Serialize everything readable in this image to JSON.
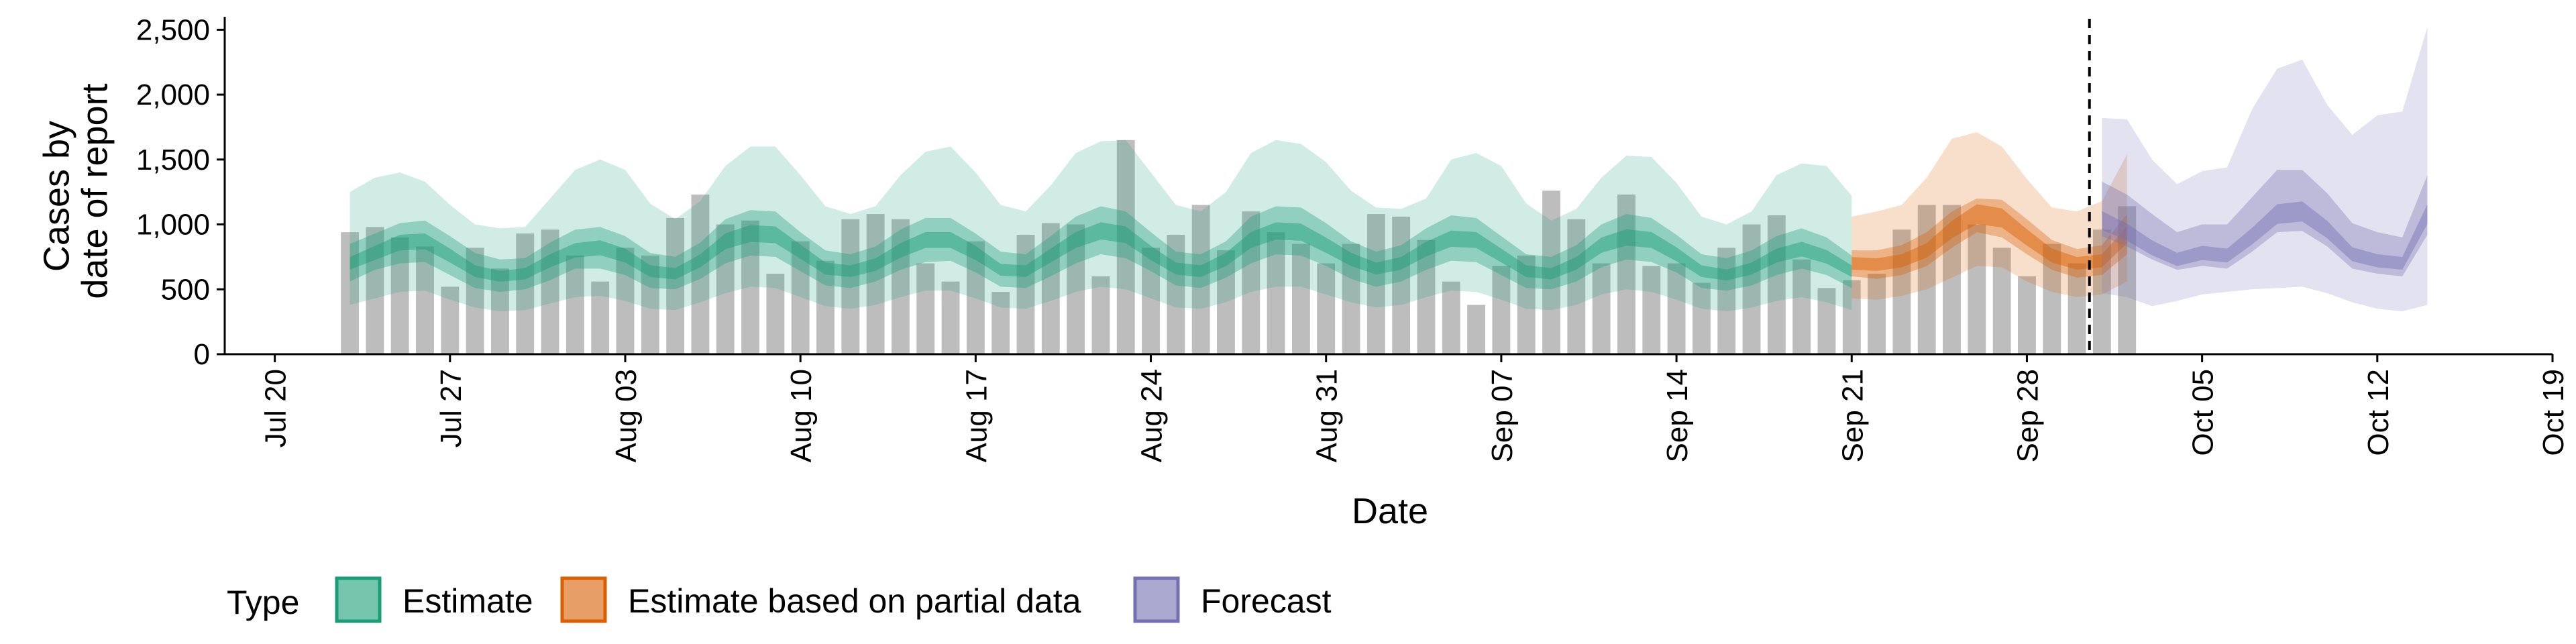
{
  "chart_data": {
    "type": "bar",
    "xlabel": "Date",
    "ylabel": [
      "Cases by",
      "date of report"
    ],
    "ylim": [
      0,
      2600
    ],
    "y_ticks": [
      0,
      500,
      1000,
      1500,
      2000,
      2500
    ],
    "y_tick_labels": [
      "0",
      "500",
      "1,000",
      "1,500",
      "2,000",
      "2,500"
    ],
    "x_range": [
      "2020-07-18",
      "2020-10-19"
    ],
    "x_ticks": [
      "2020-07-20",
      "2020-07-27",
      "2020-08-03",
      "2020-08-10",
      "2020-08-17",
      "2020-08-24",
      "2020-08-31",
      "2020-09-07",
      "2020-09-14",
      "2020-09-21",
      "2020-09-28",
      "2020-10-05",
      "2020-10-12",
      "2020-10-19"
    ],
    "x_tick_labels": [
      "Jul 20",
      "Jul 27",
      "Aug 03",
      "Aug 10",
      "Aug 17",
      "Aug 24",
      "Aug 31",
      "Sep 07",
      "Sep 14",
      "Sep 21",
      "Sep 28",
      "Oct 05",
      "Oct 12",
      "Oct 19"
    ],
    "grid": false,
    "vline_date": "2020-09-30",
    "legend": {
      "title": "Type",
      "position": "bottom",
      "entries": [
        {
          "label": "Estimate",
          "color": "#1b9e77"
        },
        {
          "label": "Estimate based on partial data",
          "color": "#d95f02"
        },
        {
          "label": "Forecast",
          "color": "#7570b3"
        }
      ]
    },
    "reported_cases": {
      "start_date": "2020-07-23",
      "color": "#bdbdbd",
      "values": [
        940,
        980,
        900,
        830,
        520,
        820,
        660,
        930,
        960,
        760,
        560,
        820,
        760,
        1050,
        1230,
        1000,
        1030,
        620,
        870,
        720,
        1040,
        1080,
        1040,
        700,
        560,
        870,
        480,
        920,
        1010,
        1000,
        600,
        1650,
        820,
        920,
        1150,
        800,
        1100,
        940,
        850,
        700,
        850,
        1080,
        1060,
        880,
        560,
        380,
        680,
        760,
        1260,
        1040,
        700,
        1230,
        680,
        700,
        550,
        820,
        1000,
        1070,
        730,
        510,
        570,
        620,
        960,
        1150,
        1150,
        1000,
        820,
        600,
        850,
        700,
        960,
        1140
      ]
    },
    "series": [
      {
        "name": "Estimate",
        "color": "#1b9e77",
        "start_date": "2020-07-23",
        "median": [
          700,
          780,
          860,
          870,
          760,
          640,
          600,
          620,
          720,
          800,
          820,
          760,
          640,
          620,
          720,
          870,
          930,
          920,
          790,
          660,
          640,
          690,
          800,
          880,
          880,
          780,
          650,
          640,
          760,
          880,
          950,
          920,
          780,
          660,
          640,
          730,
          880,
          950,
          940,
          840,
          730,
          660,
          700,
          810,
          890,
          880,
          760,
          640,
          620,
          700,
          840,
          900,
          880,
          770,
          640,
          610,
          660,
          760,
          810,
          750,
          640
        ],
        "q25": [
          560,
          650,
          700,
          710,
          610,
          510,
          480,
          500,
          570,
          660,
          660,
          610,
          510,
          500,
          580,
          700,
          760,
          750,
          640,
          530,
          510,
          560,
          650,
          710,
          720,
          630,
          520,
          510,
          600,
          700,
          770,
          740,
          640,
          530,
          510,
          590,
          700,
          770,
          760,
          680,
          580,
          520,
          560,
          650,
          720,
          710,
          610,
          510,
          500,
          560,
          670,
          730,
          710,
          630,
          510,
          490,
          530,
          610,
          660,
          610,
          510
        ],
        "q75": [
          850,
          930,
          1010,
          1030,
          910,
          780,
          730,
          740,
          860,
          960,
          980,
          910,
          780,
          750,
          860,
          1040,
          1110,
          1100,
          940,
          800,
          770,
          830,
          960,
          1050,
          1050,
          930,
          790,
          770,
          910,
          1060,
          1140,
          1100,
          940,
          790,
          770,
          870,
          1060,
          1140,
          1130,
          1010,
          870,
          790,
          840,
          970,
          1070,
          1050,
          910,
          770,
          750,
          840,
          1000,
          1080,
          1050,
          920,
          770,
          740,
          800,
          910,
          970,
          900,
          760
        ],
        "q05": [
          380,
          430,
          480,
          490,
          420,
          360,
          330,
          340,
          390,
          440,
          450,
          410,
          350,
          340,
          400,
          470,
          520,
          510,
          440,
          370,
          350,
          380,
          440,
          490,
          490,
          430,
          360,
          350,
          410,
          480,
          520,
          500,
          430,
          360,
          350,
          400,
          480,
          520,
          520,
          460,
          400,
          360,
          380,
          440,
          490,
          480,
          420,
          350,
          340,
          380,
          460,
          500,
          480,
          420,
          350,
          330,
          360,
          410,
          440,
          400,
          340
        ],
        "q95": [
          1250,
          1360,
          1400,
          1330,
          1150,
          1000,
          970,
          980,
          1200,
          1420,
          1500,
          1420,
          1160,
          1040,
          1180,
          1450,
          1600,
          1600,
          1380,
          1140,
          1080,
          1140,
          1380,
          1560,
          1600,
          1400,
          1150,
          1100,
          1300,
          1550,
          1640,
          1650,
          1400,
          1150,
          1100,
          1250,
          1550,
          1650,
          1620,
          1480,
          1260,
          1130,
          1120,
          1200,
          1500,
          1550,
          1450,
          1160,
          1030,
          1120,
          1360,
          1530,
          1520,
          1320,
          1060,
          1000,
          1100,
          1380,
          1470,
          1450,
          1220
        ]
      },
      {
        "name": "Estimate based on partial data",
        "color": "#d95f02",
        "start_date": "2020-09-21",
        "median": [
          700,
          690,
          720,
          800,
          960,
          1080,
          1050,
          900,
          760,
          700,
          720,
          920
        ],
        "q25": [
          600,
          580,
          610,
          680,
          820,
          940,
          900,
          770,
          650,
          590,
          610,
          770
        ],
        "q75": [
          800,
          800,
          840,
          940,
          1100,
          1200,
          1190,
          1040,
          880,
          810,
          840,
          1080
        ],
        "q05": [
          430,
          420,
          450,
          500,
          590,
          680,
          670,
          560,
          480,
          440,
          460,
          560
        ],
        "q95": [
          1060,
          1100,
          1150,
          1360,
          1660,
          1710,
          1600,
          1350,
          1130,
          1100,
          1180,
          1540
        ]
      },
      {
        "name": "Forecast",
        "color": "#7570b3",
        "start_date": "2020-10-01",
        "median": [
          1030,
          940,
          820,
          730,
          780,
          760,
          910,
          1080,
          1100,
          960,
          770,
          720,
          700,
          1080
        ],
        "q25": [
          910,
          830,
          730,
          650,
          680,
          660,
          790,
          940,
          950,
          830,
          660,
          620,
          600,
          920
        ],
        "q75": [
          1330,
          1230,
          1080,
          940,
          1000,
          1000,
          1210,
          1420,
          1420,
          1240,
          1010,
          940,
          900,
          1380
        ],
        "q05": [
          470,
          440,
          370,
          410,
          460,
          480,
          500,
          510,
          520,
          470,
          400,
          350,
          330,
          380
        ],
        "q95": [
          1820,
          1810,
          1500,
          1310,
          1410,
          1440,
          1890,
          2200,
          2270,
          1920,
          1690,
          1840,
          1870,
          2520
        ]
      }
    ]
  }
}
